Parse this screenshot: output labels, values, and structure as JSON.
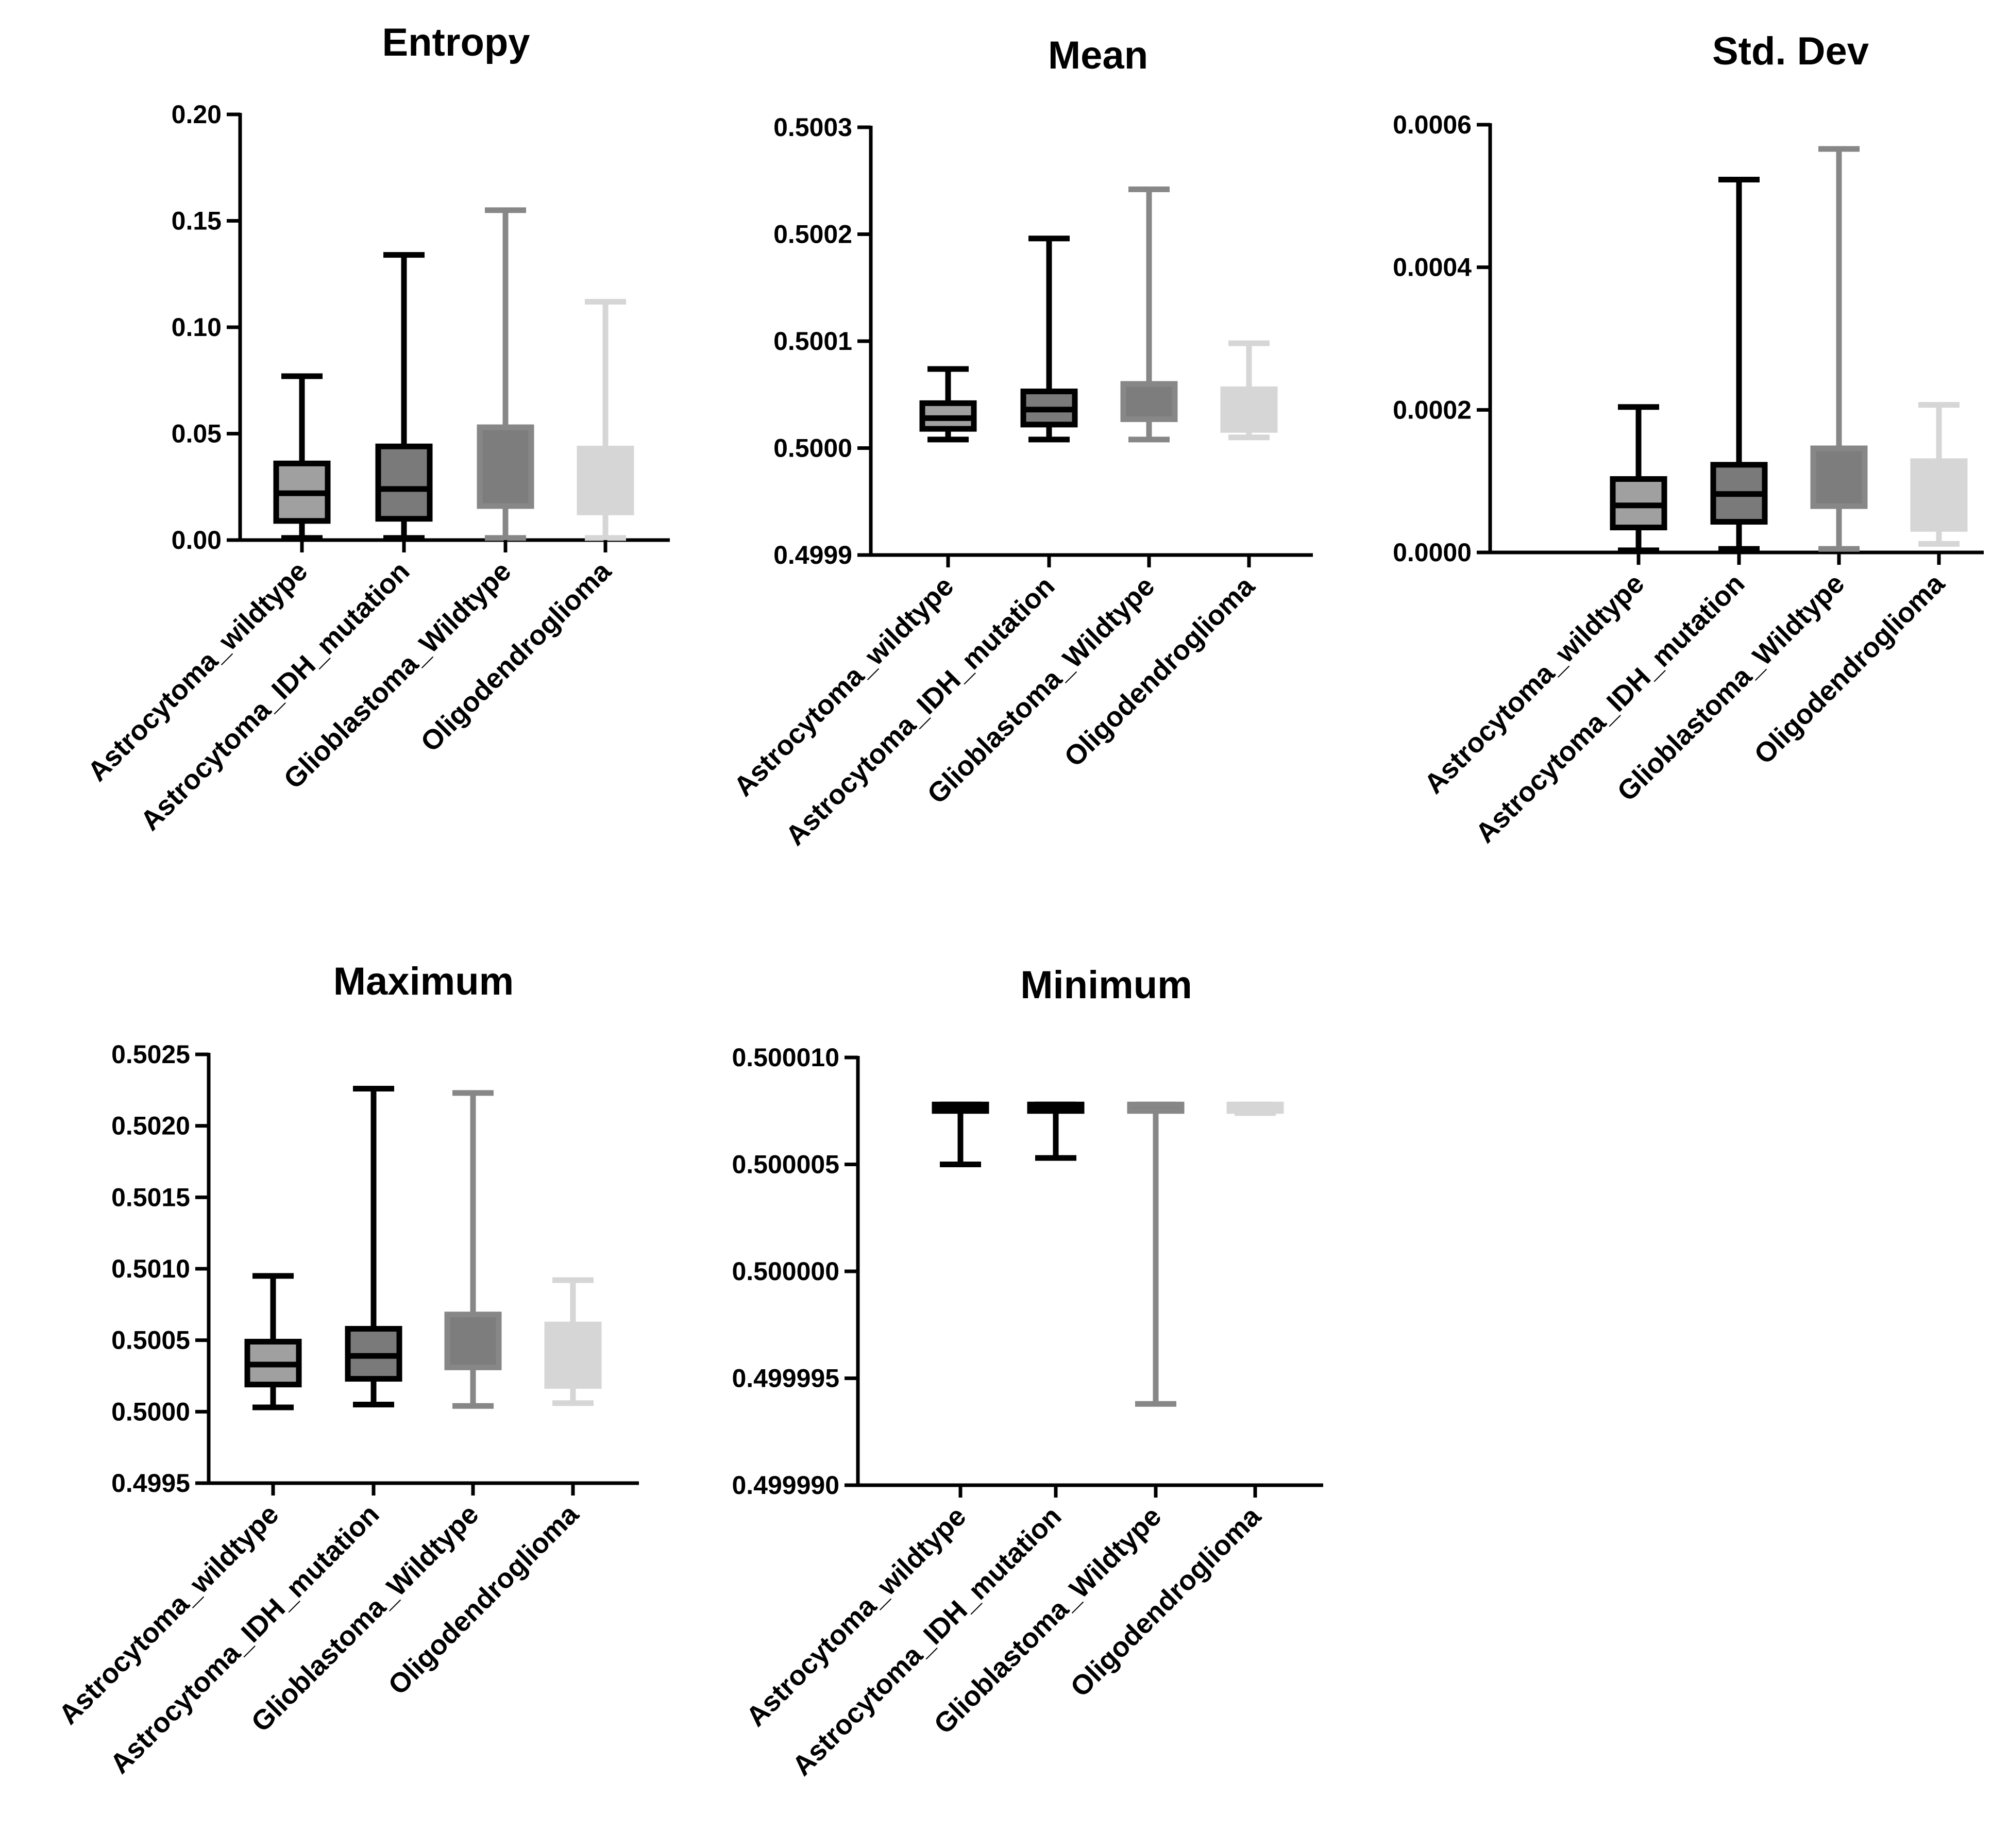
{
  "chart_data": [
    {
      "type": "box",
      "title": "Entropy",
      "xlabel": "",
      "ylabel": "",
      "categories": [
        "Astrocytoma_wildtype",
        "Astrocytoma_IDH_mutation",
        "Glioblastoma_Wildtype",
        "Oligodendroglioma"
      ],
      "ylim": [
        0,
        0.2
      ],
      "yticks": [
        "0.00",
        "0.05",
        "0.10",
        "0.15",
        "0.20"
      ],
      "boxes": [
        {
          "min": 0.001,
          "q1": 0.009,
          "median": 0.022,
          "q3": 0.036,
          "max": 0.077
        },
        {
          "min": 0.001,
          "q1": 0.01,
          "median": 0.024,
          "q3": 0.044,
          "max": 0.134
        },
        {
          "min": 0.001,
          "q1": 0.016,
          "median": null,
          "q3": 0.053,
          "max": 0.155
        },
        {
          "min": 0.001,
          "q1": 0.013,
          "median": null,
          "q3": 0.043,
          "max": 0.112
        }
      ]
    },
    {
      "type": "box",
      "title": "Mean",
      "xlabel": "",
      "ylabel": "",
      "categories": [
        "Astrocytoma_wildtype",
        "Astrocytoma_IDH_mutation",
        "Glioblastoma_Wildtype",
        "Oligodendroglioma"
      ],
      "ylim": [
        0.4999,
        0.5003
      ],
      "yticks": [
        "0.4999",
        "0.5000",
        "0.5001",
        "0.5002",
        "0.5003"
      ],
      "boxes": [
        {
          "min": 0.500008,
          "q1": 0.500018,
          "median": 0.500028,
          "q3": 0.500042,
          "max": 0.500074
        },
        {
          "min": 0.500008,
          "q1": 0.500022,
          "median": 0.500036,
          "q3": 0.500053,
          "max": 0.500196
        },
        {
          "min": 0.500008,
          "q1": 0.500027,
          "median": null,
          "q3": 0.50006,
          "max": 0.500242
        },
        {
          "min": 0.50001,
          "q1": 0.500017,
          "median": null,
          "q3": 0.500055,
          "max": 0.500098
        }
      ]
    },
    {
      "type": "box",
      "title": "Std. Dev",
      "xlabel": "",
      "ylabel": "",
      "categories": [
        "Astrocytoma_wildtype",
        "Astrocytoma_IDH_mutation",
        "Glioblastoma_Wildtype",
        "Oligodendroglioma"
      ],
      "ylim": [
        0,
        0.0006
      ],
      "yticks": [
        "0.0000",
        "0.0002",
        "0.0004",
        "0.0006"
      ],
      "boxes": [
        {
          "min": 3e-06,
          "q1": 3.5e-05,
          "median": 6.6e-05,
          "q3": 0.000103,
          "max": 0.000204
        },
        {
          "min": 5e-06,
          "q1": 4.3e-05,
          "median": 8.2e-05,
          "q3": 0.000123,
          "max": 0.000523
        },
        {
          "min": 5e-06,
          "q1": 6.5e-05,
          "median": null,
          "q3": 0.000146,
          "max": 0.000566
        },
        {
          "min": 1.2e-05,
          "q1": 3.3e-05,
          "median": null,
          "q3": 0.000128,
          "max": 0.000207
        }
      ]
    },
    {
      "type": "box",
      "title": "Maximum",
      "xlabel": "",
      "ylabel": "",
      "categories": [
        "Astrocytoma_wildtype",
        "Astrocytoma_IDH_mutation",
        "Glioblastoma_Wildtype",
        "Oligodendroglioma"
      ],
      "ylim": [
        0.4995,
        0.5025
      ],
      "yticks": [
        "0.4995",
        "0.5000",
        "0.5005",
        "0.5010",
        "0.5015",
        "0.5020",
        "0.5025"
      ],
      "boxes": [
        {
          "min": 0.50003,
          "q1": 0.50019,
          "median": 0.50033,
          "q3": 0.50049,
          "max": 0.50095
        },
        {
          "min": 0.50005,
          "q1": 0.50023,
          "median": 0.50039,
          "q3": 0.50058,
          "max": 0.50226
        },
        {
          "min": 0.50004,
          "q1": 0.50031,
          "median": null,
          "q3": 0.50068,
          "max": 0.50223
        },
        {
          "min": 0.50006,
          "q1": 0.50018,
          "median": null,
          "q3": 0.50061,
          "max": 0.50092
        }
      ]
    },
    {
      "type": "box",
      "title": "Minimum",
      "xlabel": "",
      "ylabel": "",
      "categories": [
        "Astrocytoma_wildtype",
        "Astrocytoma_IDH_mutation",
        "Glioblastoma_Wildtype",
        "Oligodendroglioma"
      ],
      "ylim": [
        0.49999,
        0.50001
      ],
      "yticks": [
        "0.499990",
        "0.499995",
        "0.500000",
        "0.500005",
        "0.500010"
      ],
      "boxes": [
        {
          "min": 0.500005,
          "q1": 0.5000075,
          "median": 0.5000077,
          "q3": 0.5000078,
          "max": 0.5000078
        },
        {
          "min": 0.5000053,
          "q1": 0.5000075,
          "median": 0.5000077,
          "q3": 0.5000078,
          "max": 0.5000078
        },
        {
          "min": 0.4999938,
          "q1": 0.5000075,
          "median": null,
          "q3": 0.5000078,
          "max": 0.5000078
        },
        {
          "min": 0.5000074,
          "q1": 0.5000075,
          "median": null,
          "q3": 0.5000078,
          "max": 0.5000078
        }
      ]
    }
  ],
  "colors": {
    "box_fills": [
      "#a0a0a0",
      "#7a7a7a",
      "#7d7d7d",
      "#d6d6d6"
    ],
    "box_strokes": [
      "#000000",
      "#000000",
      "#878787",
      "#d6d6d6"
    ]
  }
}
